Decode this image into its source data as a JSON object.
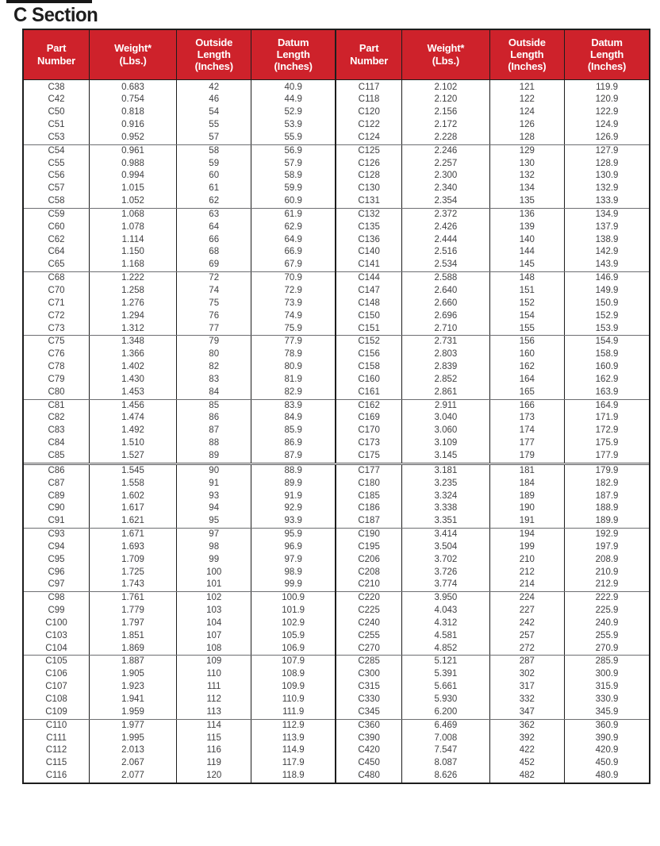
{
  "page_title": "C Section",
  "colors": {
    "header_bg": "#ce222b",
    "header_text": "#ffffff",
    "body_text": "#404042",
    "border": "#1d1d1d",
    "group_line": "#6d6e71"
  },
  "table": {
    "headers": [
      "Part\nNumber",
      "Weight*\n(Lbs.)",
      "Outside\nLength\n(Inches)",
      "Datum\nLength\n(Inches)"
    ],
    "left_rows": [
      [
        "C38",
        "0.683",
        "42",
        "40.9"
      ],
      [
        "C42",
        "0.754",
        "46",
        "44.9"
      ],
      [
        "C50",
        "0.818",
        "54",
        "52.9"
      ],
      [
        "C51",
        "0.916",
        "55",
        "53.9"
      ],
      [
        "C53",
        "0.952",
        "57",
        "55.9"
      ],
      [
        "C54",
        "0.961",
        "58",
        "56.9"
      ],
      [
        "C55",
        "0.988",
        "59",
        "57.9"
      ],
      [
        "C56",
        "0.994",
        "60",
        "58.9"
      ],
      [
        "C57",
        "1.015",
        "61",
        "59.9"
      ],
      [
        "C58",
        "1.052",
        "62",
        "60.9"
      ],
      [
        "C59",
        "1.068",
        "63",
        "61.9"
      ],
      [
        "C60",
        "1.078",
        "64",
        "62.9"
      ],
      [
        "C62",
        "1.114",
        "66",
        "64.9"
      ],
      [
        "C64",
        "1.150",
        "68",
        "66.9"
      ],
      [
        "C65",
        "1.168",
        "69",
        "67.9"
      ],
      [
        "C68",
        "1.222",
        "72",
        "70.9"
      ],
      [
        "C70",
        "1.258",
        "74",
        "72.9"
      ],
      [
        "C71",
        "1.276",
        "75",
        "73.9"
      ],
      [
        "C72",
        "1.294",
        "76",
        "74.9"
      ],
      [
        "C73",
        "1.312",
        "77",
        "75.9"
      ],
      [
        "C75",
        "1.348",
        "79",
        "77.9"
      ],
      [
        "C76",
        "1.366",
        "80",
        "78.9"
      ],
      [
        "C78",
        "1.402",
        "82",
        "80.9"
      ],
      [
        "C79",
        "1.430",
        "83",
        "81.9"
      ],
      [
        "C80",
        "1.453",
        "84",
        "82.9"
      ],
      [
        "C81",
        "1.456",
        "85",
        "83.9"
      ],
      [
        "C82",
        "1.474",
        "86",
        "84.9"
      ],
      [
        "C83",
        "1.492",
        "87",
        "85.9"
      ],
      [
        "C84",
        "1.510",
        "88",
        "86.9"
      ],
      [
        "C85",
        "1.527",
        "89",
        "87.9"
      ],
      [
        "C86",
        "1.545",
        "90",
        "88.9"
      ],
      [
        "C87",
        "1.558",
        "91",
        "89.9"
      ],
      [
        "C89",
        "1.602",
        "93",
        "91.9"
      ],
      [
        "C90",
        "1.617",
        "94",
        "92.9"
      ],
      [
        "C91",
        "1.621",
        "95",
        "93.9"
      ],
      [
        "C93",
        "1.671",
        "97",
        "95.9"
      ],
      [
        "C94",
        "1.693",
        "98",
        "96.9"
      ],
      [
        "C95",
        "1.709",
        "99",
        "97.9"
      ],
      [
        "C96",
        "1.725",
        "100",
        "98.9"
      ],
      [
        "C97",
        "1.743",
        "101",
        "99.9"
      ],
      [
        "C98",
        "1.761",
        "102",
        "100.9"
      ],
      [
        "C99",
        "1.779",
        "103",
        "101.9"
      ],
      [
        "C100",
        "1.797",
        "104",
        "102.9"
      ],
      [
        "C103",
        "1.851",
        "107",
        "105.9"
      ],
      [
        "C104",
        "1.869",
        "108",
        "106.9"
      ],
      [
        "C105",
        "1.887",
        "109",
        "107.9"
      ],
      [
        "C106",
        "1.905",
        "110",
        "108.9"
      ],
      [
        "C107",
        "1.923",
        "111",
        "109.9"
      ],
      [
        "C108",
        "1.941",
        "112",
        "110.9"
      ],
      [
        "C109",
        "1.959",
        "113",
        "111.9"
      ],
      [
        "C110",
        "1.977",
        "114",
        "112.9"
      ],
      [
        "C111",
        "1.995",
        "115",
        "113.9"
      ],
      [
        "C112",
        "2.013",
        "116",
        "114.9"
      ],
      [
        "C115",
        "2.067",
        "119",
        "117.9"
      ],
      [
        "C116",
        "2.077",
        "120",
        "118.9"
      ]
    ],
    "right_rows": [
      [
        "C117",
        "2.102",
        "121",
        "119.9"
      ],
      [
        "C118",
        "2.120",
        "122",
        "120.9"
      ],
      [
        "C120",
        "2.156",
        "124",
        "122.9"
      ],
      [
        "C122",
        "2.172",
        "126",
        "124.9"
      ],
      [
        "C124",
        "2.228",
        "128",
        "126.9"
      ],
      [
        "C125",
        "2.246",
        "129",
        "127.9"
      ],
      [
        "C126",
        "2.257",
        "130",
        "128.9"
      ],
      [
        "C128",
        "2.300",
        "132",
        "130.9"
      ],
      [
        "C130",
        "2.340",
        "134",
        "132.9"
      ],
      [
        "C131",
        "2.354",
        "135",
        "133.9"
      ],
      [
        "C132",
        "2.372",
        "136",
        "134.9"
      ],
      [
        "C135",
        "2.426",
        "139",
        "137.9"
      ],
      [
        "C136",
        "2.444",
        "140",
        "138.9"
      ],
      [
        "C140",
        "2.516",
        "144",
        "142.9"
      ],
      [
        "C141",
        "2.534",
        "145",
        "143.9"
      ],
      [
        "C144",
        "2.588",
        "148",
        "146.9"
      ],
      [
        "C147",
        "2.640",
        "151",
        "149.9"
      ],
      [
        "C148",
        "2.660",
        "152",
        "150.9"
      ],
      [
        "C150",
        "2.696",
        "154",
        "152.9"
      ],
      [
        "C151",
        "2.710",
        "155",
        "153.9"
      ],
      [
        "C152",
        "2.731",
        "156",
        "154.9"
      ],
      [
        "C156",
        "2.803",
        "160",
        "158.9"
      ],
      [
        "C158",
        "2.839",
        "162",
        "160.9"
      ],
      [
        "C160",
        "2.852",
        "164",
        "162.9"
      ],
      [
        "C161",
        "2.861",
        "165",
        "163.9"
      ],
      [
        "C162",
        "2.911",
        "166",
        "164.9"
      ],
      [
        "C169",
        "3.040",
        "173",
        "171.9"
      ],
      [
        "C170",
        "3.060",
        "174",
        "172.9"
      ],
      [
        "C173",
        "3.109",
        "177",
        "175.9"
      ],
      [
        "C175",
        "3.145",
        "179",
        "177.9"
      ],
      [
        "C177",
        "3.181",
        "181",
        "179.9"
      ],
      [
        "C180",
        "3.235",
        "184",
        "182.9"
      ],
      [
        "C185",
        "3.324",
        "189",
        "187.9"
      ],
      [
        "C186",
        "3.338",
        "190",
        "188.9"
      ],
      [
        "C187",
        "3.351",
        "191",
        "189.9"
      ],
      [
        "C190",
        "3.414",
        "194",
        "192.9"
      ],
      [
        "C195",
        "3.504",
        "199",
        "197.9"
      ],
      [
        "C206",
        "3.702",
        "210",
        "208.9"
      ],
      [
        "C208",
        "3.726",
        "212",
        "210.9"
      ],
      [
        "C210",
        "3.774",
        "214",
        "212.9"
      ],
      [
        "C220",
        "3.950",
        "224",
        "222.9"
      ],
      [
        "C225",
        "4.043",
        "227",
        "225.9"
      ],
      [
        "C240",
        "4.312",
        "242",
        "240.9"
      ],
      [
        "C255",
        "4.581",
        "257",
        "255.9"
      ],
      [
        "C270",
        "4.852",
        "272",
        "270.9"
      ],
      [
        "C285",
        "5.121",
        "287",
        "285.9"
      ],
      [
        "C300",
        "5.391",
        "302",
        "300.9"
      ],
      [
        "C315",
        "5.661",
        "317",
        "315.9"
      ],
      [
        "C330",
        "5.930",
        "332",
        "330.9"
      ],
      [
        "C345",
        "6.200",
        "347",
        "345.9"
      ],
      [
        "C360",
        "6.469",
        "362",
        "360.9"
      ],
      [
        "C390",
        "7.008",
        "392",
        "390.9"
      ],
      [
        "C420",
        "7.547",
        "422",
        "420.9"
      ],
      [
        "C450",
        "8.087",
        "452",
        "450.9"
      ],
      [
        "C480",
        "8.626",
        "482",
        "480.9"
      ]
    ]
  }
}
